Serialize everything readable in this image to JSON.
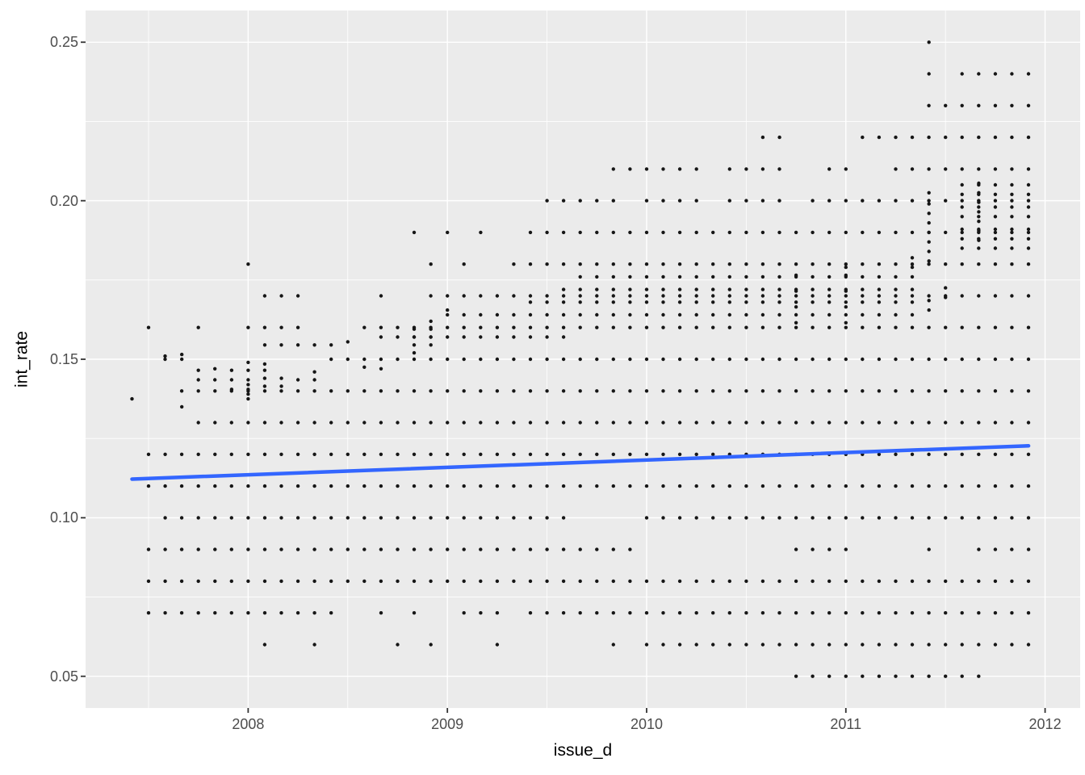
{
  "chart_data": {
    "type": "scatter",
    "title": "",
    "xlabel": "issue_d",
    "ylabel": "int_rate",
    "x_axis": {
      "tick_values": [
        2008,
        2009,
        2010,
        2011,
        2012
      ],
      "tick_labels": [
        "2008",
        "2009",
        "2010",
        "2011",
        "2012"
      ],
      "minor_ticks": [
        2007.5,
        2008.5,
        2009.5,
        2010.5,
        2011.5
      ],
      "lim": [
        2007.184,
        2012.176
      ]
    },
    "y_axis": {
      "tick_values": [
        0.05,
        0.1,
        0.15,
        0.2,
        0.25
      ],
      "tick_labels": [
        "0.05",
        "0.10",
        "0.15",
        "0.20",
        "0.25"
      ],
      "minor_ticks": [
        0.075,
        0.125,
        0.175,
        0.225
      ],
      "lim": [
        0.04,
        0.26
      ]
    },
    "grid": "on",
    "legend": "none",
    "point_interval_months": 1,
    "data_x_range": [
      2007.417,
      2011.917
    ],
    "rows": [
      [
        0.05,
        2010.75,
        2011.667
      ],
      [
        0.06,
        2010.0,
        2011.917
      ],
      [
        0.07,
        2007.5,
        2008.417
      ],
      [
        0.07,
        2009.417,
        2011.917
      ],
      [
        0.08,
        2007.5,
        2011.917
      ],
      [
        0.09,
        2007.5,
        2009.917
      ],
      [
        0.1,
        2007.583,
        2009.583
      ],
      [
        0.1,
        2010.0,
        2011.917
      ],
      [
        0.11,
        2007.5,
        2011.917
      ],
      [
        0.12,
        2007.5,
        2011.917
      ],
      [
        0.13,
        2007.75,
        2011.917
      ],
      [
        0.14,
        2007.667,
        2011.917
      ],
      [
        0.15,
        2008.417,
        2011.917
      ],
      [
        0.1545,
        2008.083,
        2008.417
      ],
      [
        0.157,
        2008.667,
        2009.583
      ],
      [
        0.16,
        2008.583,
        2011.917
      ],
      [
        0.164,
        2009.0,
        2011.333
      ],
      [
        0.168,
        2009.417,
        2011.333
      ],
      [
        0.17,
        2008.917,
        2011.917
      ],
      [
        0.172,
        2009.583,
        2011.333
      ],
      [
        0.176,
        2009.667,
        2011.333
      ],
      [
        0.18,
        2009.333,
        2011.917
      ],
      [
        0.185,
        2011.583,
        2011.917
      ],
      [
        0.188,
        2011.583,
        2011.917
      ],
      [
        0.19,
        2009.417,
        2011.917
      ],
      [
        0.191,
        2011.583,
        2011.917
      ],
      [
        0.195,
        2011.583,
        2011.917
      ],
      [
        0.198,
        2011.583,
        2011.917
      ],
      [
        0.2,
        2009.5,
        2011.917,
        [
          [
            2009.86,
            2009.96
          ],
          [
            2010.28,
            2010.37
          ],
          [
            2010.7,
            2010.79
          ]
        ]
      ],
      [
        0.202,
        2011.583,
        2011.917
      ],
      [
        0.205,
        2011.583,
        2011.917
      ],
      [
        0.21,
        2009.833,
        2010.667,
        [
          [
            2010.28,
            2010.37
          ]
        ]
      ],
      [
        0.21,
        2010.917,
        2011.917,
        [
          [
            2011.03,
            2011.22
          ]
        ]
      ],
      [
        0.22,
        2011.083,
        2011.917
      ],
      [
        0.23,
        2011.417,
        2011.917
      ],
      [
        0.24,
        2011.583,
        2011.917
      ]
    ],
    "extra_points": [
      [
        2007.417,
        0.1375
      ],
      [
        2007.583,
        0.151
      ],
      [
        2007.667,
        0.1515
      ],
      [
        2007.667,
        0.135
      ],
      [
        2007.75,
        0.1465
      ],
      [
        2007.75,
        0.1435
      ],
      [
        2007.833,
        0.147
      ],
      [
        2007.833,
        0.1435
      ],
      [
        2008.25,
        0.1435
      ],
      [
        2008.333,
        0.146
      ],
      [
        2008.333,
        0.1435
      ],
      [
        2008.5,
        0.1555
      ],
      [
        2008.583,
        0.1475
      ],
      [
        2008.667,
        0.147
      ],
      [
        2008.083,
        0.06
      ],
      [
        2008.333,
        0.06
      ],
      [
        2008.75,
        0.06
      ],
      [
        2008.917,
        0.06
      ],
      [
        2009.25,
        0.06
      ],
      [
        2009.833,
        0.06
      ],
      [
        2008.667,
        0.07
      ],
      [
        2008.833,
        0.07
      ],
      [
        2009.083,
        0.07
      ],
      [
        2009.167,
        0.07
      ],
      [
        2009.25,
        0.07
      ],
      [
        2010.75,
        0.09
      ],
      [
        2010.833,
        0.09
      ],
      [
        2010.917,
        0.09
      ],
      [
        2011.0,
        0.09
      ],
      [
        2011.417,
        0.09
      ],
      [
        2011.667,
        0.09
      ],
      [
        2011.75,
        0.09
      ],
      [
        2011.833,
        0.09
      ],
      [
        2011.917,
        0.09
      ],
      [
        2007.583,
        0.15
      ],
      [
        2007.667,
        0.15
      ],
      [
        2007.5,
        0.16
      ],
      [
        2007.75,
        0.16
      ],
      [
        2008.0,
        0.16
      ],
      [
        2008.083,
        0.16
      ],
      [
        2008.167,
        0.16
      ],
      [
        2008.25,
        0.16
      ],
      [
        2008.083,
        0.17
      ],
      [
        2008.167,
        0.17
      ],
      [
        2008.25,
        0.17
      ],
      [
        2008.667,
        0.17
      ],
      [
        2008.0,
        0.18
      ],
      [
        2008.917,
        0.18
      ],
      [
        2009.083,
        0.18
      ],
      [
        2008.833,
        0.19
      ],
      [
        2009.0,
        0.19
      ],
      [
        2009.167,
        0.19
      ],
      [
        2010.583,
        0.22
      ],
      [
        2010.667,
        0.22
      ],
      [
        2011.417,
        0.24
      ],
      [
        2011.417,
        0.25
      ]
    ],
    "vertical_clusters": [
      {
        "x": 2007.917,
        "rates": [
          0.1405,
          0.1435,
          0.1465
        ]
      },
      {
        "x": 2008.0,
        "rates": [
          0.1375,
          0.139,
          0.1405,
          0.142,
          0.1435,
          0.1465,
          0.149
        ]
      },
      {
        "x": 2008.083,
        "rates": [
          0.1415,
          0.144,
          0.1465,
          0.1485
        ]
      },
      {
        "x": 2008.167,
        "rates": [
          0.1415,
          0.144
        ]
      },
      {
        "x": 2008.833,
        "rates": [
          0.152,
          0.1545,
          0.157,
          0.1595
        ]
      },
      {
        "x": 2008.917,
        "rates": [
          0.1545,
          0.157,
          0.1595,
          0.162
        ]
      },
      {
        "x": 2009.0,
        "rates": [
          0.1655
        ]
      },
      {
        "x": 2010.75,
        "rates": [
          0.1615,
          0.1665,
          0.1715,
          0.1765
        ]
      },
      {
        "x": 2011.0,
        "rates": [
          0.1615,
          0.1665,
          0.1715,
          0.1765,
          0.179
        ]
      },
      {
        "x": 2011.333,
        "rates": [
          0.179,
          0.182
        ]
      },
      {
        "x": 2011.417,
        "rates": [
          0.1655,
          0.1685,
          0.181,
          0.184,
          0.187,
          0.19,
          0.193,
          0.196,
          0.199,
          0.2025
        ]
      },
      {
        "x": 2011.5,
        "rates": [
          0.1695,
          0.1725
        ]
      },
      {
        "x": 2011.667,
        "rates": [
          0.1875,
          0.1905,
          0.1935,
          0.1965,
          0.1995,
          0.2025,
          0.2055
        ]
      }
    ],
    "trend_line": {
      "x": [
        2007.417,
        2011.917
      ],
      "y": [
        0.1122,
        0.1227
      ]
    },
    "colors": {
      "panel_bg": "#EBEBEB",
      "grid": "#FFFFFF",
      "point": "#161616",
      "trend": "#3366FF",
      "tick_label": "#4D4D4D",
      "axis_title": "#000000",
      "tick_mark": "#333333"
    }
  }
}
